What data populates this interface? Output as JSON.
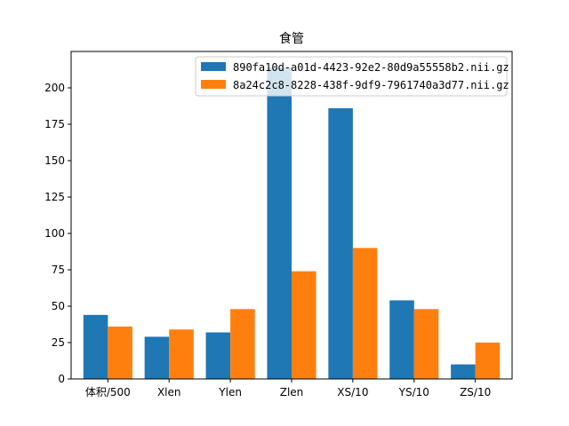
{
  "chart_data": {
    "type": "bar",
    "title": "食管",
    "categories": [
      "体积/500",
      "Xlen",
      "Ylen",
      "Zlen",
      "XS/10",
      "YS/10",
      "ZS/10"
    ],
    "series": [
      {
        "name": "890fa10d-a01d-4423-92e2-80d9a55558b2.nii.gz",
        "color": "#1f77b4",
        "values": [
          44,
          29,
          32,
          214,
          186,
          54,
          10
        ]
      },
      {
        "name": "8a24c2c8-8228-438f-9df9-7961740a3d77.nii.gz",
        "color": "#ff7f0e",
        "values": [
          36,
          34,
          48,
          74,
          90,
          48,
          25
        ]
      }
    ],
    "ylim": [
      0,
      225
    ],
    "yticks": [
      0,
      25,
      50,
      75,
      100,
      125,
      150,
      175,
      200
    ],
    "xlabel": "",
    "ylabel": "",
    "grid": false,
    "legend_position": "top-right"
  }
}
